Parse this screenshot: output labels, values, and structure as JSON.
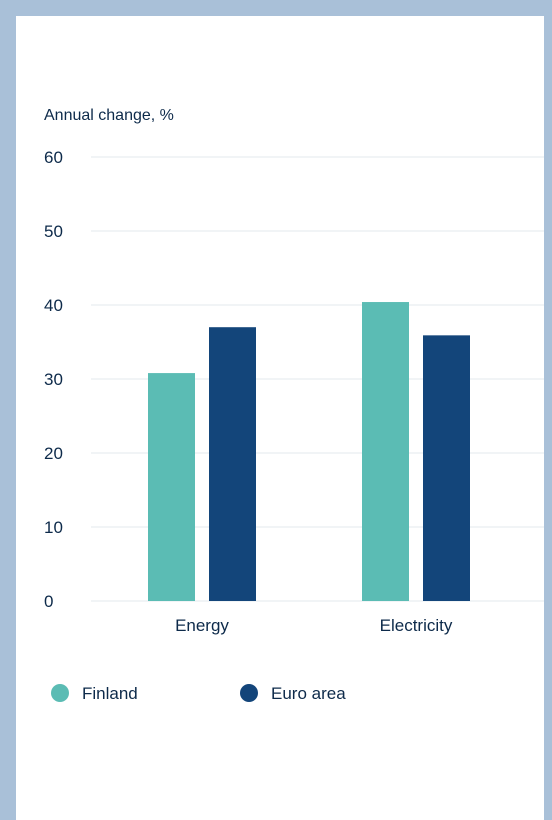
{
  "colors": {
    "background": "#a9c0d8",
    "panel": "#ffffff",
    "finland": "#5bbcb4",
    "euro_area": "#13457a",
    "text": "#0d2a4a",
    "grid": "#e3e8ee"
  },
  "chart_data": {
    "type": "bar",
    "title": "",
    "ylabel": "Annual change, %",
    "xlabel": "",
    "categories": [
      "Energy",
      "Electricity"
    ],
    "series": [
      {
        "name": "Finland",
        "values": [
          30.8,
          40.4
        ]
      },
      {
        "name": "Euro area",
        "values": [
          37.0,
          35.9
        ]
      }
    ],
    "ylim": [
      0,
      60
    ],
    "yticks": [
      "0",
      "10",
      "20",
      "30",
      "40",
      "50",
      "60"
    ],
    "grid": true,
    "legend_position": "bottom-left"
  }
}
